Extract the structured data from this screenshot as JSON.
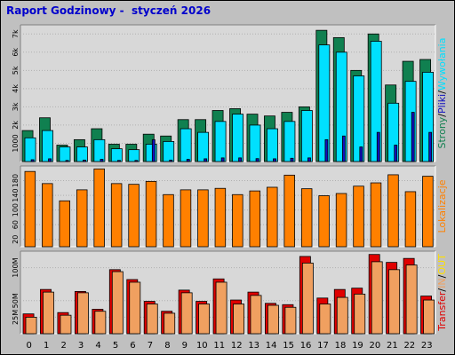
{
  "title": "Raport Godzinowy -  styczeń 2026",
  "colors": {
    "bg": "#c0c0c0",
    "plot_bg": "#d8d8d8",
    "strony": "#108050",
    "pliki": "#00e0ff",
    "wywolania": "#1010c0",
    "lokalizacje": "#ff8000",
    "transfer": "#e00000",
    "in": "#f0a060",
    "out": "#ffe000",
    "title": "#0000cc"
  },
  "chart_data": [
    {
      "type": "bar",
      "name": "visits-panel",
      "categories": [
        "0",
        "1",
        "2",
        "3",
        "4",
        "5",
        "6",
        "7",
        "8",
        "9",
        "10",
        "11",
        "12",
        "13",
        "14",
        "15",
        "16",
        "17",
        "18",
        "19",
        "20",
        "21",
        "22",
        "23"
      ],
      "series": [
        {
          "name": "Strony",
          "values": [
            1700,
            2400,
            900,
            1200,
            1800,
            950,
            950,
            1500,
            1400,
            2300,
            2300,
            2800,
            2900,
            2600,
            2500,
            2700,
            3000,
            7200,
            6800,
            5000,
            7000,
            4200,
            5500,
            5600
          ]
        },
        {
          "name": "Pliki",
          "values": [
            1300,
            1700,
            800,
            800,
            1200,
            700,
            650,
            950,
            1100,
            1800,
            1600,
            2200,
            2600,
            2000,
            1800,
            2200,
            2800,
            6400,
            6000,
            4700,
            6600,
            3200,
            4400,
            4900
          ]
        },
        {
          "name": "Wywołania",
          "values": [
            100,
            150,
            60,
            80,
            120,
            60,
            60,
            1200,
            80,
            120,
            150,
            200,
            200,
            160,
            150,
            180,
            200,
            1200,
            1400,
            800,
            1600,
            900,
            2700,
            1600
          ]
        }
      ],
      "yticks": [
        "1000",
        "2k",
        "3k",
        "4k",
        "5k",
        "6k",
        "7k"
      ],
      "ylim": [
        0,
        7500
      ],
      "side_label": [
        "Strony",
        "/",
        "Pliki",
        "/",
        "Wywołania"
      ]
    },
    {
      "type": "bar",
      "name": "locations-panel",
      "categories": [
        "0",
        "1",
        "2",
        "3",
        "4",
        "5",
        "6",
        "7",
        "8",
        "9",
        "10",
        "11",
        "12",
        "13",
        "14",
        "15",
        "16",
        "17",
        "18",
        "19",
        "20",
        "21",
        "22",
        "23"
      ],
      "series": [
        {
          "name": "Lokalizacje",
          "values": [
            205,
            172,
            125,
            155,
            212,
            172,
            170,
            178,
            142,
            155,
            155,
            159,
            142,
            152,
            162,
            195,
            158,
            139,
            145,
            165,
            174,
            196,
            150,
            192
          ]
        }
      ],
      "yticks": [
        "20",
        "60",
        "100",
        "140",
        "180"
      ],
      "ylim": [
        0,
        220
      ],
      "side_label": [
        "Lokalizacje"
      ]
    },
    {
      "type": "bar",
      "name": "transfer-panel",
      "categories": [
        "0",
        "1",
        "2",
        "3",
        "4",
        "5",
        "6",
        "7",
        "8",
        "9",
        "10",
        "11",
        "12",
        "13",
        "14",
        "15",
        "16",
        "17",
        "18",
        "19",
        "20",
        "21",
        "22",
        "23"
      ],
      "series": [
        {
          "name": "Transfer",
          "values": [
            30,
            67,
            32,
            64,
            37,
            97,
            82,
            49,
            34,
            66,
            49,
            83,
            51,
            63,
            46,
            44,
            117,
            54,
            67,
            69,
            120,
            108,
            114,
            57
          ]
        },
        {
          "name": "IN",
          "values": [
            25,
            63,
            28,
            62,
            34,
            94,
            78,
            45,
            31,
            62,
            45,
            78,
            45,
            58,
            43,
            40,
            107,
            45,
            55,
            60,
            109,
            97,
            104,
            51
          ]
        },
        {
          "name": "OUT",
          "values": [
            0,
            0,
            0,
            0,
            0,
            0,
            0,
            0,
            0,
            0,
            0,
            0,
            0,
            0,
            0,
            0,
            0,
            0,
            0,
            0,
            0,
            0,
            0,
            0
          ]
        }
      ],
      "yticks": [
        "25M",
        "50M",
        "100M"
      ],
      "ytick_values": [
        25,
        50,
        100
      ],
      "ylim": [
        0,
        125
      ],
      "side_label": [
        "Transfer",
        "/",
        "IN",
        "/",
        "OUT"
      ]
    }
  ]
}
